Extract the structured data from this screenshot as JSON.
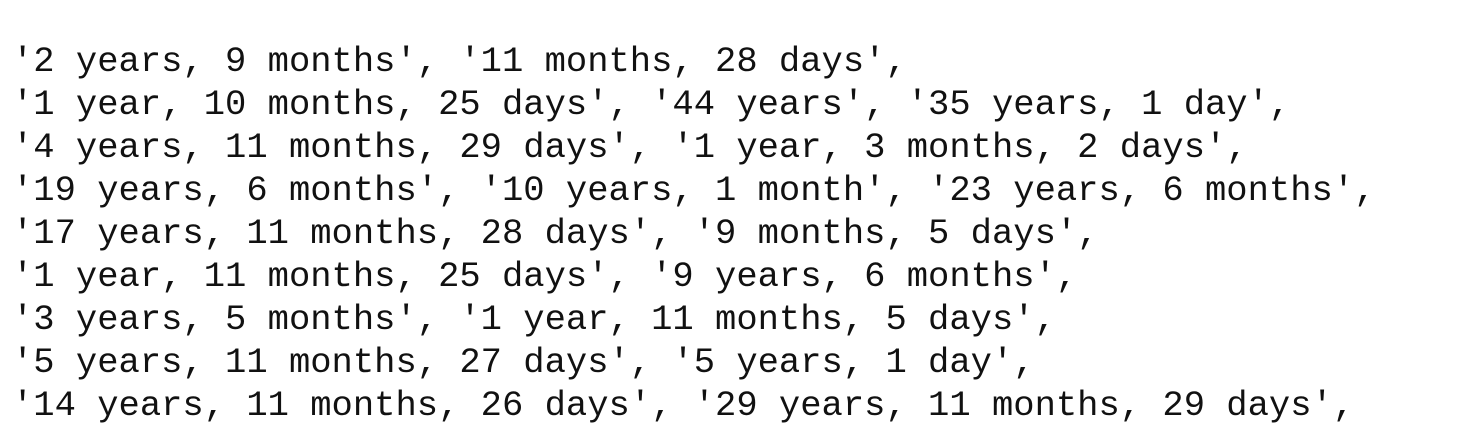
{
  "output": {
    "lines": [
      "'2 years, 9 months', '11 months, 28 days',",
      "'1 year, 10 months, 25 days', '44 years', '35 years, 1 day',",
      "'4 years, 11 months, 29 days', '1 year, 3 months, 2 days',",
      "'19 years, 6 months', '10 years, 1 month', '23 years, 6 months',",
      "'17 years, 11 months, 28 days', '9 months, 5 days',",
      "'1 year, 11 months, 25 days', '9 years, 6 months',",
      "'3 years, 5 months', '1 year, 11 months, 5 days',",
      "'5 years, 11 months, 27 days', '5 years, 1 day',",
      "'14 years, 11 months, 26 days', '29 years, 11 months, 29 days',"
    ]
  }
}
